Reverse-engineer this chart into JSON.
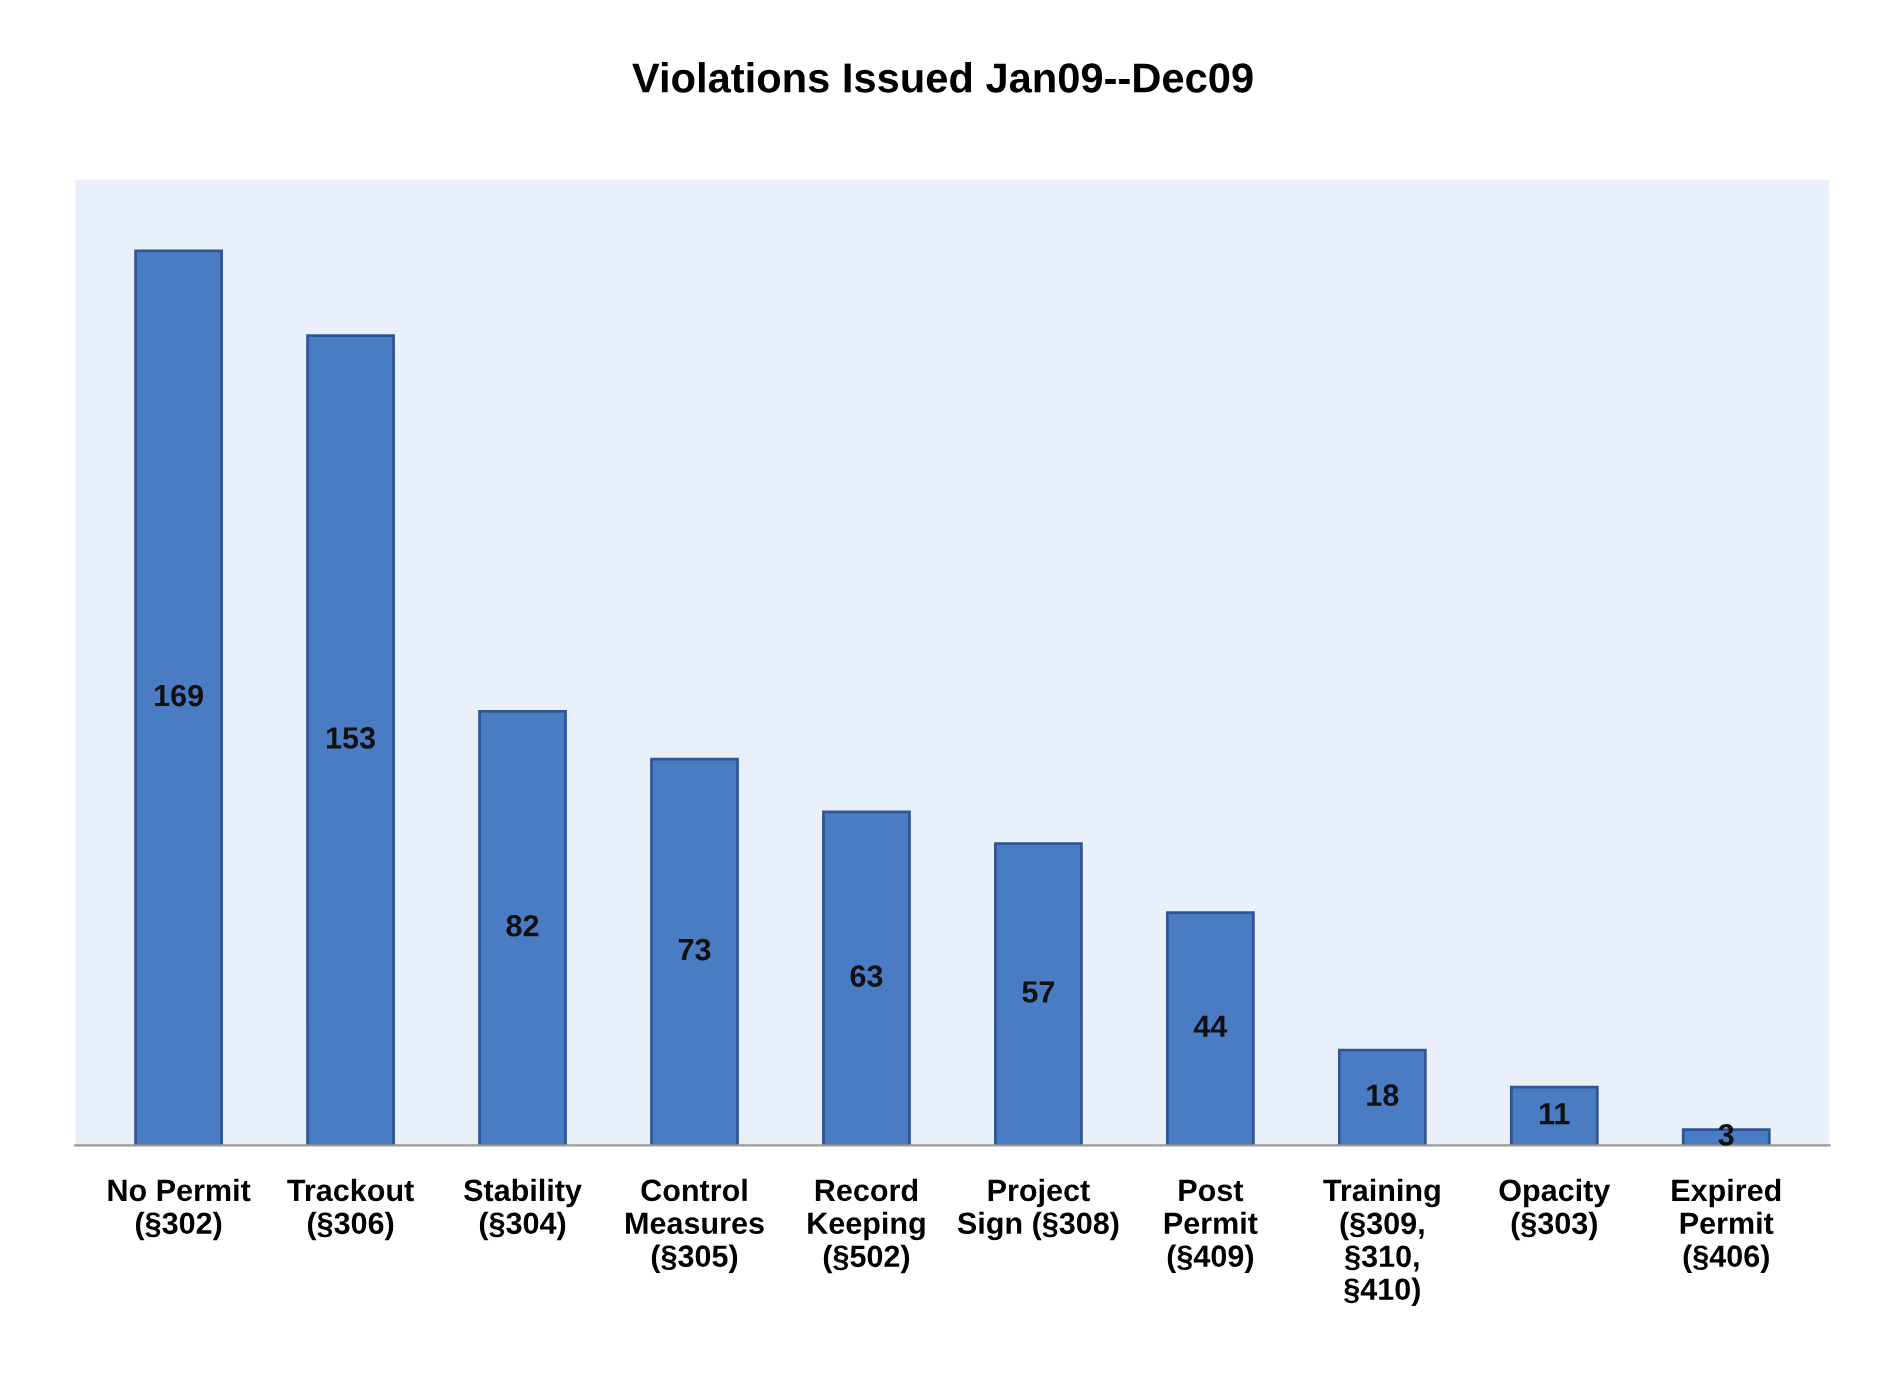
{
  "chart_data": {
    "type": "bar",
    "title": "Violations Issued Jan09--Dec09",
    "categories": [
      "No Permit\n(§302)",
      "Trackout\n(§306)",
      "Stability\n(§304)",
      "Control\nMeasures\n(§305)",
      "Record\nKeeping\n(§502)",
      "Project\nSign (§308)",
      "Post\nPermit\n(§409)",
      "Training\n(§309,\n§310,\n§410)",
      "Opacity\n(§303)",
      "Expired\nPermit\n(§406)"
    ],
    "values": [
      169,
      153,
      82,
      73,
      63,
      57,
      44,
      18,
      11,
      3
    ],
    "color": "#4a7cc4",
    "data_labels": true,
    "grid": false,
    "legend": false
  }
}
